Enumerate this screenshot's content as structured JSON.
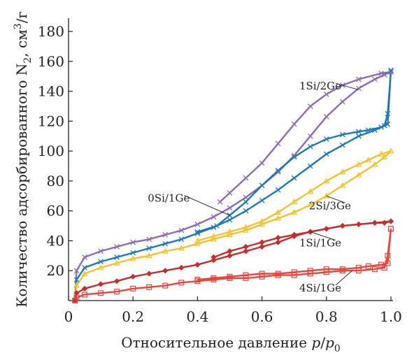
{
  "chart_data": {
    "type": "line",
    "title": "",
    "xlabel": "Относительное давление p/p0",
    "xlabel_parts": {
      "main": "Относительное давление ",
      "var_p": "p",
      "slash": "/",
      "var_p0": "p",
      "sub0": "0"
    },
    "ylabel": "Количество адсорбированного N2, см3/г",
    "ylabel_parts": {
      "main": "Количество адсорбированного N",
      "sub2": "2",
      "mid": ", см",
      "sup3": "3",
      "tail": "/г"
    },
    "xlim": [
      0,
      1.0
    ],
    "ylim": [
      0,
      180
    ],
    "x_ticks": [
      "0",
      "0.2",
      "0.4",
      "0.6",
      "0.8",
      "1.0"
    ],
    "x_tick_values": [
      0,
      0.2,
      0.4,
      0.6,
      0.8,
      1.0
    ],
    "y_ticks": [
      "20",
      "40",
      "60",
      "80",
      "100",
      "120",
      "140",
      "160",
      "180"
    ],
    "y_tick_values": [
      20,
      40,
      60,
      80,
      100,
      120,
      140,
      160,
      180
    ],
    "grid": false,
    "legend": "none (labels placed next to curves)",
    "series": [
      {
        "name": "1Si/2Ge",
        "color": "#8c6bb1",
        "marker": "x",
        "adsorption": [
          [
            0.02,
            0
          ],
          [
            0.025,
            20
          ],
          [
            0.05,
            29
          ],
          [
            0.1,
            33
          ],
          [
            0.15,
            36
          ],
          [
            0.2,
            39
          ],
          [
            0.25,
            41
          ],
          [
            0.3,
            44
          ],
          [
            0.35,
            47
          ],
          [
            0.4,
            51
          ],
          [
            0.45,
            56
          ],
          [
            0.5,
            62
          ],
          [
            0.55,
            69
          ],
          [
            0.6,
            77
          ],
          [
            0.65,
            86
          ],
          [
            0.7,
            97
          ],
          [
            0.75,
            110
          ],
          [
            0.8,
            123
          ],
          [
            0.85,
            133
          ],
          [
            0.9,
            142
          ],
          [
            0.95,
            148
          ],
          [
            0.98,
            151
          ],
          [
            1.0,
            153
          ]
        ],
        "desorption": [
          [
            1.0,
            153
          ],
          [
            0.97,
            152
          ],
          [
            0.9,
            148
          ],
          [
            0.85,
            144
          ],
          [
            0.8,
            138
          ],
          [
            0.75,
            130
          ],
          [
            0.7,
            118
          ],
          [
            0.65,
            105
          ],
          [
            0.6,
            92
          ],
          [
            0.55,
            82
          ],
          [
            0.5,
            72
          ],
          [
            0.47,
            66
          ]
        ]
      },
      {
        "name": "0Si/1Ge",
        "color": "#1f78b4",
        "marker": "x",
        "adsorption": [
          [
            0.02,
            0
          ],
          [
            0.025,
            14
          ],
          [
            0.05,
            22
          ],
          [
            0.1,
            26
          ],
          [
            0.15,
            29
          ],
          [
            0.2,
            32
          ],
          [
            0.25,
            35
          ],
          [
            0.3,
            38
          ],
          [
            0.35,
            41
          ],
          [
            0.4,
            45
          ],
          [
            0.45,
            49
          ],
          [
            0.5,
            54
          ],
          [
            0.55,
            60
          ],
          [
            0.6,
            67
          ],
          [
            0.65,
            74
          ],
          [
            0.7,
            82
          ],
          [
            0.75,
            90
          ],
          [
            0.8,
            98
          ],
          [
            0.85,
            104
          ],
          [
            0.9,
            110
          ],
          [
            0.95,
            114
          ],
          [
            0.98,
            117
          ],
          [
            0.99,
            125
          ],
          [
            1.0,
            154
          ]
        ],
        "desorption": [
          [
            1.0,
            154
          ],
          [
            0.99,
            118
          ],
          [
            0.97,
            116
          ],
          [
            0.93,
            114
          ],
          [
            0.9,
            113
          ],
          [
            0.85,
            111
          ],
          [
            0.8,
            108
          ],
          [
            0.75,
            103
          ],
          [
            0.7,
            96
          ],
          [
            0.65,
            87
          ],
          [
            0.6,
            77
          ],
          [
            0.55,
            66
          ],
          [
            0.5,
            57
          ],
          [
            0.46,
            50
          ],
          [
            0.4,
            46
          ]
        ]
      },
      {
        "name": "2Si/3Ge",
        "color": "#f2c12e",
        "marker": "triangle",
        "adsorption": [
          [
            0.02,
            0
          ],
          [
            0.025,
            10
          ],
          [
            0.05,
            18
          ],
          [
            0.1,
            22
          ],
          [
            0.15,
            25
          ],
          [
            0.2,
            28
          ],
          [
            0.25,
            30
          ],
          [
            0.3,
            33
          ],
          [
            0.35,
            35
          ],
          [
            0.4,
            38
          ],
          [
            0.45,
            41
          ],
          [
            0.5,
            44
          ],
          [
            0.55,
            47
          ],
          [
            0.6,
            51
          ],
          [
            0.65,
            55
          ],
          [
            0.7,
            59
          ],
          [
            0.75,
            64
          ],
          [
            0.8,
            70
          ],
          [
            0.85,
            77
          ],
          [
            0.9,
            84
          ],
          [
            0.95,
            91
          ],
          [
            0.98,
            96
          ],
          [
            1.0,
            100
          ]
        ],
        "desorption": [
          [
            1.0,
            100
          ],
          [
            0.97,
            98
          ],
          [
            0.93,
            94
          ],
          [
            0.9,
            91
          ],
          [
            0.85,
            86
          ],
          [
            0.8,
            80
          ],
          [
            0.75,
            73
          ],
          [
            0.7,
            66
          ],
          [
            0.65,
            59
          ],
          [
            0.6,
            53
          ],
          [
            0.55,
            49
          ],
          [
            0.5,
            46
          ],
          [
            0.45,
            43
          ],
          [
            0.4,
            40
          ]
        ]
      },
      {
        "name": "1Si/1Ge",
        "color": "#c62d2d",
        "marker": "diamond",
        "adsorption": [
          [
            0.02,
            0
          ],
          [
            0.025,
            5
          ],
          [
            0.05,
            8
          ],
          [
            0.1,
            11
          ],
          [
            0.15,
            13
          ],
          [
            0.2,
            16
          ],
          [
            0.25,
            18
          ],
          [
            0.3,
            20
          ],
          [
            0.35,
            22
          ],
          [
            0.4,
            24
          ],
          [
            0.45,
            27
          ],
          [
            0.5,
            30
          ],
          [
            0.55,
            33
          ],
          [
            0.6,
            36
          ],
          [
            0.65,
            39
          ],
          [
            0.7,
            43
          ],
          [
            0.75,
            46
          ],
          [
            0.8,
            48
          ],
          [
            0.85,
            50
          ],
          [
            0.9,
            51
          ],
          [
            0.95,
            52
          ],
          [
            0.98,
            52
          ],
          [
            1.0,
            53
          ]
        ],
        "desorption": [
          [
            1.0,
            53
          ],
          [
            0.95,
            52
          ],
          [
            0.9,
            51
          ],
          [
            0.85,
            50
          ],
          [
            0.8,
            48
          ],
          [
            0.75,
            46
          ],
          [
            0.7,
            44
          ],
          [
            0.65,
            42
          ],
          [
            0.6,
            39
          ],
          [
            0.55,
            36
          ],
          [
            0.5,
            33
          ],
          [
            0.45,
            29
          ]
        ]
      },
      {
        "name": "4Si/1Ge",
        "color": "#e8453c",
        "marker": "square",
        "adsorption": [
          [
            0.02,
            0
          ],
          [
            0.025,
            2
          ],
          [
            0.05,
            4
          ],
          [
            0.1,
            5
          ],
          [
            0.15,
            6
          ],
          [
            0.2,
            8
          ],
          [
            0.25,
            9
          ],
          [
            0.3,
            10
          ],
          [
            0.35,
            12
          ],
          [
            0.4,
            13
          ],
          [
            0.45,
            14
          ],
          [
            0.5,
            15
          ],
          [
            0.55,
            15
          ],
          [
            0.6,
            16
          ],
          [
            0.65,
            17
          ],
          [
            0.7,
            17
          ],
          [
            0.75,
            18
          ],
          [
            0.8,
            19
          ],
          [
            0.85,
            20
          ],
          [
            0.9,
            20
          ],
          [
            0.95,
            21
          ],
          [
            0.98,
            22
          ],
          [
            0.99,
            30
          ],
          [
            1.0,
            48
          ]
        ],
        "desorption": [
          [
            1.0,
            48
          ],
          [
            0.99,
            25
          ],
          [
            0.97,
            24
          ],
          [
            0.93,
            23
          ],
          [
            0.9,
            22
          ],
          [
            0.85,
            21
          ],
          [
            0.8,
            21
          ],
          [
            0.75,
            20
          ],
          [
            0.7,
            19
          ],
          [
            0.65,
            18
          ],
          [
            0.6,
            18
          ],
          [
            0.55,
            17
          ],
          [
            0.5,
            16
          ],
          [
            0.45,
            15
          ],
          [
            0.4,
            14
          ]
        ]
      }
    ],
    "annotations": [
      {
        "text": "1Si/2Ge",
        "series": "1Si/2Ge",
        "x": 0.82,
        "y": 143,
        "anchor_x": 0.9,
        "anchor_y": 141
      },
      {
        "text": "0Si/1Ge",
        "series": "0Si/1Ge",
        "x": 0.35,
        "y": 68,
        "anchor_x": 0.5,
        "anchor_y": 57
      },
      {
        "text": "2Si/3Ge",
        "series": "2Si/3Ge",
        "x": 0.85,
        "y": 63,
        "anchor_x": 0.8,
        "anchor_y": 70
      },
      {
        "text": "1Si/1Ge",
        "series": "1Si/1Ge",
        "x": 0.82,
        "y": 38,
        "anchor_x": 0.75,
        "anchor_y": 46
      },
      {
        "text": "4Si/1Ge",
        "series": "4Si/1Ge",
        "x": 0.82,
        "y": 8,
        "anchor_x": 0.88,
        "anchor_y": 20
      }
    ]
  }
}
